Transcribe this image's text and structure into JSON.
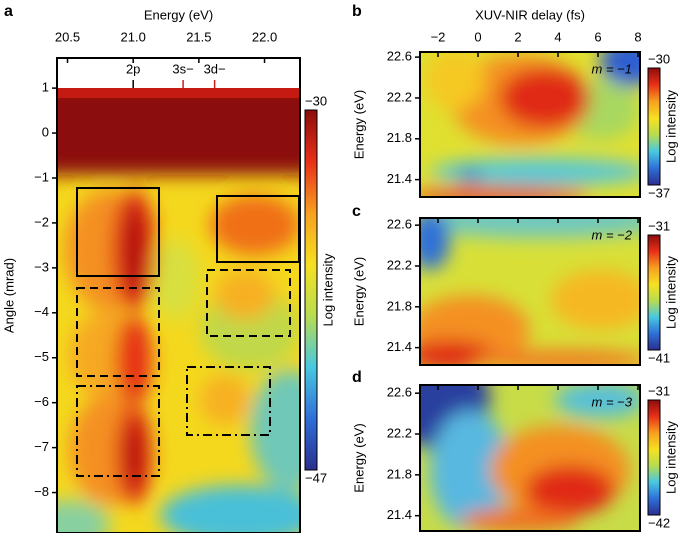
{
  "chart_data": [
    {
      "type": "heatmap",
      "panel": "a",
      "xlabel": "Energy (eV)",
      "ylabel": "Angle (mrad)",
      "xlim": [
        20.42,
        22.27
      ],
      "xticks": [
        20.5,
        {
          "value": 21,
          "label": "21.0"
        },
        21.5,
        {
          "value": 22,
          "label": "22.0"
        }
      ],
      "ylim": [
        -8.9,
        1.67
      ],
      "yticks": [
        1,
        0,
        {
          "value": -1,
          "label": "−1"
        },
        {
          "value": -2,
          "label": "−2"
        },
        {
          "value": -3,
          "label": "−3"
        },
        {
          "value": -4,
          "label": "−4"
        },
        {
          "value": -5,
          "label": "−5"
        },
        {
          "value": -6,
          "label": "−6"
        },
        {
          "value": -7,
          "label": "−7"
        },
        {
          "value": -8,
          "label": "−8"
        }
      ],
      "xtick_labels": true,
      "annotations": [
        {
          "text": "2p",
          "x": 21.0,
          "color": "#000000"
        },
        {
          "text": "3s−",
          "x": 21.38,
          "color": "#cc1f1f"
        },
        {
          "text": "3d−",
          "x": 21.62,
          "color": "#cc1f1f"
        }
      ],
      "colormap": [
        "#2b2f8f",
        "#2f6fd8",
        "#48c8e0",
        "#b8dc50",
        "#f6e020",
        "#f7a020",
        "#e83018",
        "#8c0c0c"
      ],
      "colorbar": {
        "label": "Log intensity",
        "lim": [
          -47,
          -30
        ],
        "ticks": [
          {
            "value": -30,
            "label": "−30"
          },
          {
            "value": -47,
            "label": "−47"
          }
        ]
      }
    },
    {
      "type": "heatmap",
      "panel": "b",
      "xlabel": "XUV-NIR delay (fs)",
      "ylabel": "Energy (eV)",
      "xlim": [
        -2.9,
        8.1
      ],
      "xticks": [
        {
          "value": -2,
          "label": "−2"
        },
        0,
        2,
        4,
        6,
        8
      ],
      "xtick_labels": true,
      "ylim": [
        21.23,
        22.65
      ],
      "yticks": [
        22.6,
        22.2,
        21.8,
        21.4
      ],
      "annotation": "m = −1",
      "colormap": [
        "#2b2f8f",
        "#2f6fd8",
        "#48c8e0",
        "#b8dc50",
        "#f6e020",
        "#f7a020",
        "#e83018",
        "#8c0c0c"
      ],
      "colorbar": {
        "label": "Log intensity",
        "lim": [
          -37,
          -30
        ],
        "ticks": [
          {
            "value": -30,
            "label": "−30"
          },
          {
            "value": -37,
            "label": "−37"
          }
        ]
      }
    },
    {
      "type": "heatmap",
      "panel": "c",
      "ylabel": "Energy (eV)",
      "xlim": [
        -2.9,
        8.1
      ],
      "xticks": [
        -2,
        0,
        2,
        4,
        6,
        8
      ],
      "xtick_labels": false,
      "ylim": [
        21.23,
        22.67
      ],
      "yticks": [
        22.6,
        22.2,
        21.8,
        21.4
      ],
      "annotation": "m = −2",
      "colormap": [
        "#2b2f8f",
        "#2f6fd8",
        "#48c8e0",
        "#b8dc50",
        "#f6e020",
        "#f7a020",
        "#e83018",
        "#8c0c0c"
      ],
      "colorbar": {
        "label": "Log intensity",
        "lim": [
          -41,
          -31
        ],
        "ticks": [
          {
            "value": -31,
            "label": "−31"
          },
          {
            "value": -41,
            "label": "−41"
          }
        ]
      }
    },
    {
      "type": "heatmap",
      "panel": "d",
      "ylabel": "Energy (eV)",
      "xlim": [
        -2.9,
        8.1
      ],
      "xticks": [
        -2,
        0,
        2,
        4,
        6,
        8
      ],
      "xtick_labels": false,
      "ylim": [
        21.25,
        22.68
      ],
      "yticks": [
        22.6,
        22.2,
        21.8,
        21.4
      ],
      "annotation": "m = −3",
      "colormap": [
        "#2b2f8f",
        "#2f6fd8",
        "#48c8e0",
        "#b8dc50",
        "#f6e020",
        "#f7a020",
        "#e83018",
        "#8c0c0c"
      ],
      "colorbar": {
        "label": "Log intensity",
        "lim": [
          -42,
          -31
        ],
        "ticks": [
          {
            "value": -31,
            "label": "−31"
          },
          {
            "value": -42,
            "label": "−42"
          }
        ]
      }
    }
  ]
}
